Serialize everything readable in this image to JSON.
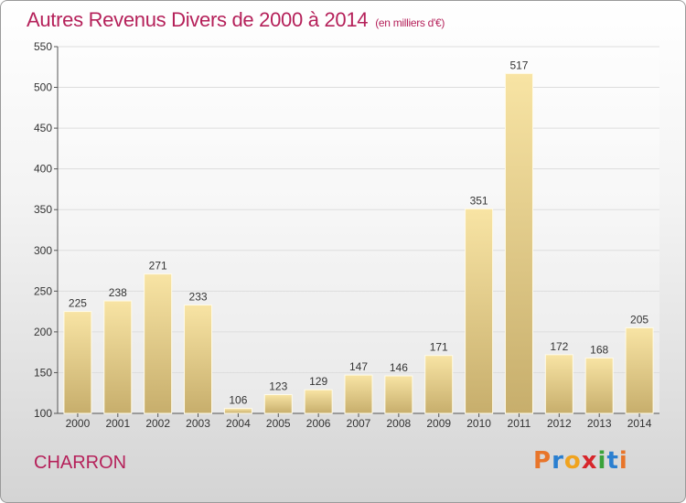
{
  "title": "Autres Revenus Divers de 2000 à 2014",
  "title_unit": "(en milliers d'€)",
  "town": "CHARRON",
  "brand": {
    "letters": [
      "P",
      "r",
      "o",
      "x",
      "i",
      "t",
      "i"
    ],
    "colors": [
      "#e8752a",
      "#2a7fd0",
      "#f0a31e",
      "#d7262b",
      "#3aa23a",
      "#2a7fd0",
      "#e8752a"
    ]
  },
  "colors": {
    "title": "#b5215a",
    "bar_light": "#f8e4a4",
    "bar_dark": "#c7ae6c",
    "grid": "#dddddd"
  },
  "chart_data": {
    "type": "bar",
    "categories": [
      "2000",
      "2001",
      "2002",
      "2003",
      "2004",
      "2005",
      "2006",
      "2007",
      "2008",
      "2009",
      "2010",
      "2011",
      "2012",
      "2013",
      "2014"
    ],
    "values": [
      225,
      238,
      271,
      233,
      106,
      123,
      129,
      147,
      146,
      171,
      351,
      517,
      172,
      168,
      205
    ],
    "ylim": [
      100,
      550
    ],
    "yticks": [
      100,
      150,
      200,
      250,
      300,
      350,
      400,
      450,
      500,
      550
    ],
    "grid": true,
    "data_labels": true
  }
}
